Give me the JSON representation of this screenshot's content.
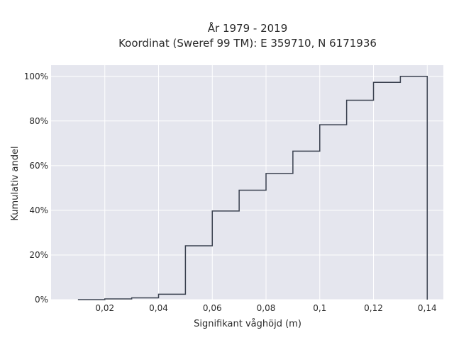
{
  "chart_data": {
    "type": "line",
    "subtype": "cumulative-step",
    "title_line1": "År 1979 - 2019",
    "title_line2": "Koordinat (Sweref 99 TM): E 359710, N 6171936",
    "xlabel": "Signifikant våghöjd (m)",
    "ylabel": "Kumulativ andel",
    "xlim": [
      0.0,
      0.146
    ],
    "ylim": [
      0.0,
      1.05
    ],
    "x_ticks": [
      {
        "value": 0.02,
        "label": "0,02"
      },
      {
        "value": 0.04,
        "label": "0,04"
      },
      {
        "value": 0.06,
        "label": "0,06"
      },
      {
        "value": 0.08,
        "label": "0,08"
      },
      {
        "value": 0.1,
        "label": "0,1"
      },
      {
        "value": 0.12,
        "label": "0,12"
      },
      {
        "value": 0.14,
        "label": "0,14"
      }
    ],
    "y_ticks": [
      {
        "value": 0.0,
        "label": "0%"
      },
      {
        "value": 0.2,
        "label": "20%"
      },
      {
        "value": 0.4,
        "label": "40%"
      },
      {
        "value": 0.6,
        "label": "60%"
      },
      {
        "value": 0.8,
        "label": "80%"
      },
      {
        "value": 1.0,
        "label": "100%"
      }
    ],
    "grid": true,
    "bins": [
      {
        "x0": 0.01,
        "x1": 0.02,
        "y": 0.0
      },
      {
        "x0": 0.02,
        "x1": 0.03,
        "y": 0.003
      },
      {
        "x0": 0.03,
        "x1": 0.04,
        "y": 0.008
      },
      {
        "x0": 0.04,
        "x1": 0.05,
        "y": 0.024
      },
      {
        "x0": 0.05,
        "x1": 0.06,
        "y": 0.241
      },
      {
        "x0": 0.06,
        "x1": 0.07,
        "y": 0.397
      },
      {
        "x0": 0.07,
        "x1": 0.08,
        "y": 0.49
      },
      {
        "x0": 0.08,
        "x1": 0.09,
        "y": 0.565
      },
      {
        "x0": 0.09,
        "x1": 0.1,
        "y": 0.665
      },
      {
        "x0": 0.1,
        "x1": 0.11,
        "y": 0.783
      },
      {
        "x0": 0.11,
        "x1": 0.12,
        "y": 0.893
      },
      {
        "x0": 0.12,
        "x1": 0.13,
        "y": 0.973
      },
      {
        "x0": 0.13,
        "x1": 0.14,
        "y": 1.0
      }
    ],
    "end_drop_to": 0.0,
    "colors": {
      "plot_background": "#e5e6ee",
      "grid": "#ffffff",
      "line": "#3b4250"
    }
  }
}
